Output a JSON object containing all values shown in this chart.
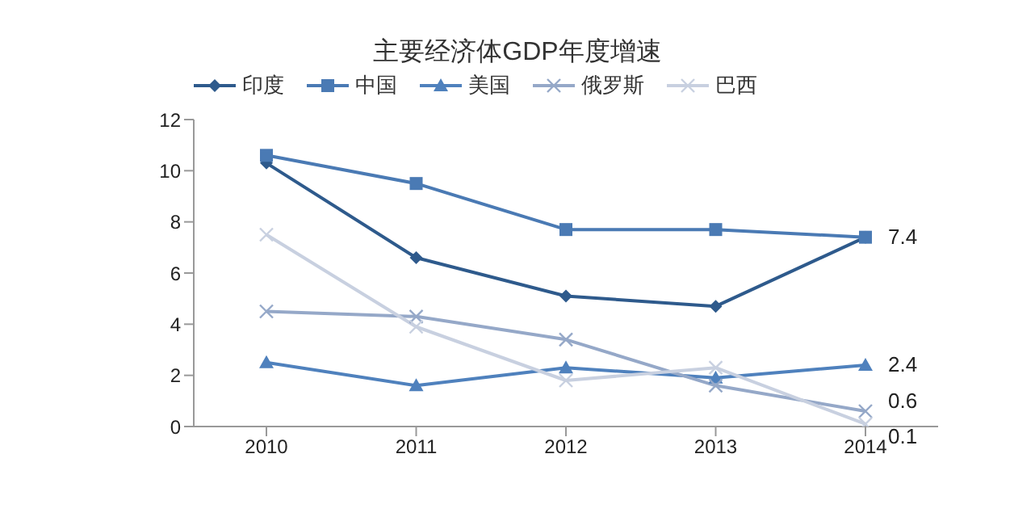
{
  "chart_data": {
    "type": "line",
    "title": "主要经济体GDP年度增速",
    "categories": [
      "2010",
      "2011",
      "2012",
      "2013",
      "2014"
    ],
    "series": [
      {
        "name": "印度",
        "color": "#2e5a8c",
        "marker": "diamond",
        "values": [
          10.3,
          6.6,
          5.1,
          4.7,
          7.4
        ],
        "value_labels": [
          null,
          null,
          null,
          null,
          "7.4"
        ]
      },
      {
        "name": "中国",
        "color": "#4a7ab4",
        "marker": "square",
        "values": [
          10.6,
          9.5,
          7.7,
          7.7,
          7.4
        ],
        "value_labels": [
          null,
          null,
          null,
          null,
          null
        ]
      },
      {
        "name": "美国",
        "color": "#4f81bd",
        "marker": "triangle",
        "values": [
          2.5,
          1.6,
          2.3,
          1.9,
          2.4
        ],
        "value_labels": [
          null,
          null,
          null,
          null,
          "2.4"
        ]
      },
      {
        "name": "俄罗斯",
        "color": "#95a8c8",
        "marker": "cross",
        "values": [
          4.5,
          4.3,
          3.4,
          1.6,
          0.6
        ],
        "value_labels": [
          null,
          null,
          null,
          null,
          "0.6"
        ]
      },
      {
        "name": "巴西",
        "color": "#c8d0e0",
        "marker": "cross",
        "values": [
          7.5,
          3.9,
          1.8,
          2.3,
          0.1
        ],
        "value_labels": [
          null,
          null,
          null,
          null,
          "0.1"
        ]
      }
    ],
    "ylim": [
      0,
      12
    ],
    "yticks": [
      0,
      2,
      4,
      6,
      8,
      10,
      12
    ],
    "grid": false,
    "legend": "top",
    "line_style": "solid"
  }
}
